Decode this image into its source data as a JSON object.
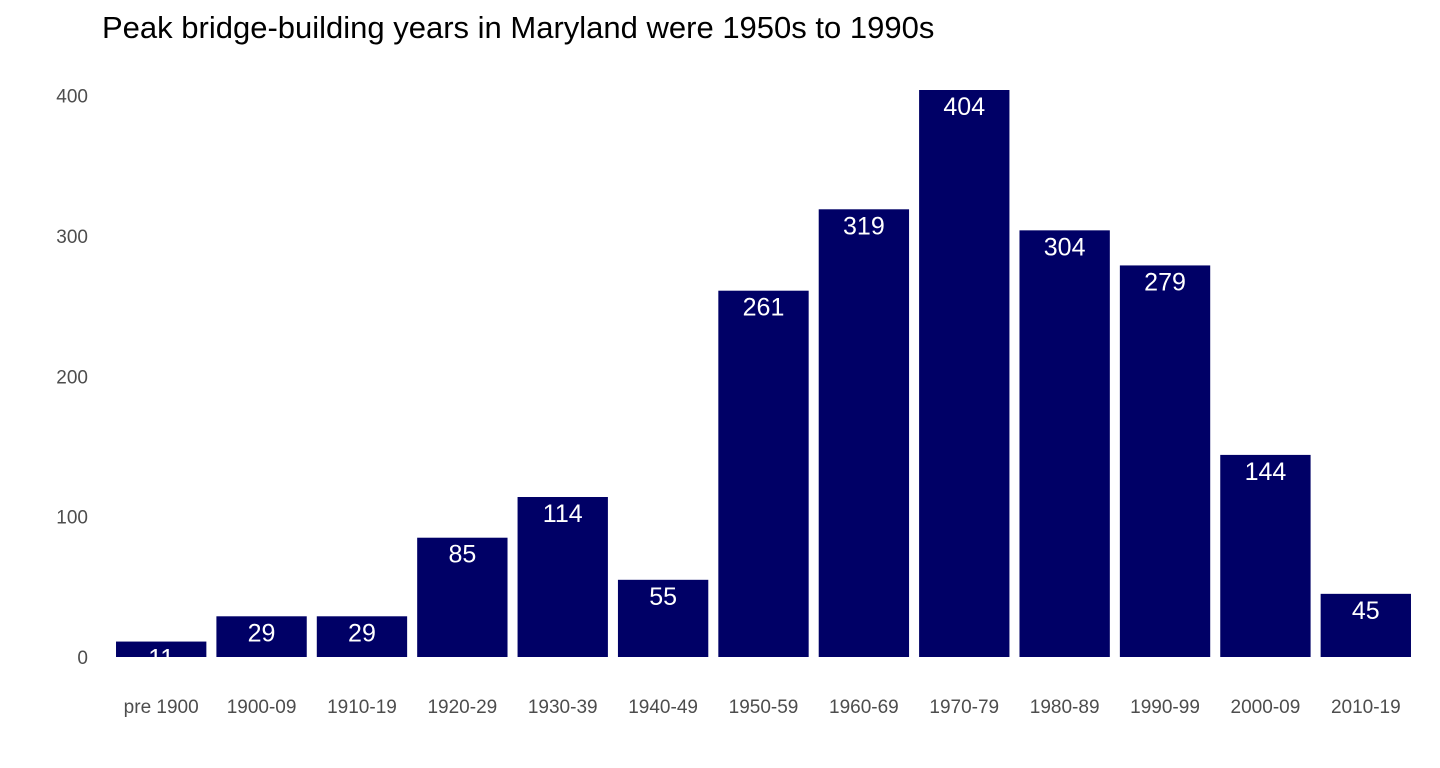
{
  "chart_data": {
    "type": "bar",
    "title": "Peak bridge-building years in Maryland were 1950s to 1990s",
    "xlabel": "",
    "ylabel": "",
    "categories": [
      "pre 1900",
      "1900-09",
      "1910-19",
      "1920-29",
      "1930-39",
      "1940-49",
      "1950-59",
      "1960-69",
      "1970-79",
      "1980-89",
      "1990-99",
      "2000-09",
      "2010-19"
    ],
    "values": [
      11,
      29,
      29,
      85,
      114,
      55,
      261,
      319,
      404,
      304,
      279,
      144,
      45
    ],
    "ylim": [
      0,
      404
    ],
    "yticks": [
      0,
      100,
      200,
      300,
      400
    ],
    "grid": false,
    "legend": "none",
    "bar_color": "#000066",
    "label_color": "#ffffff"
  }
}
